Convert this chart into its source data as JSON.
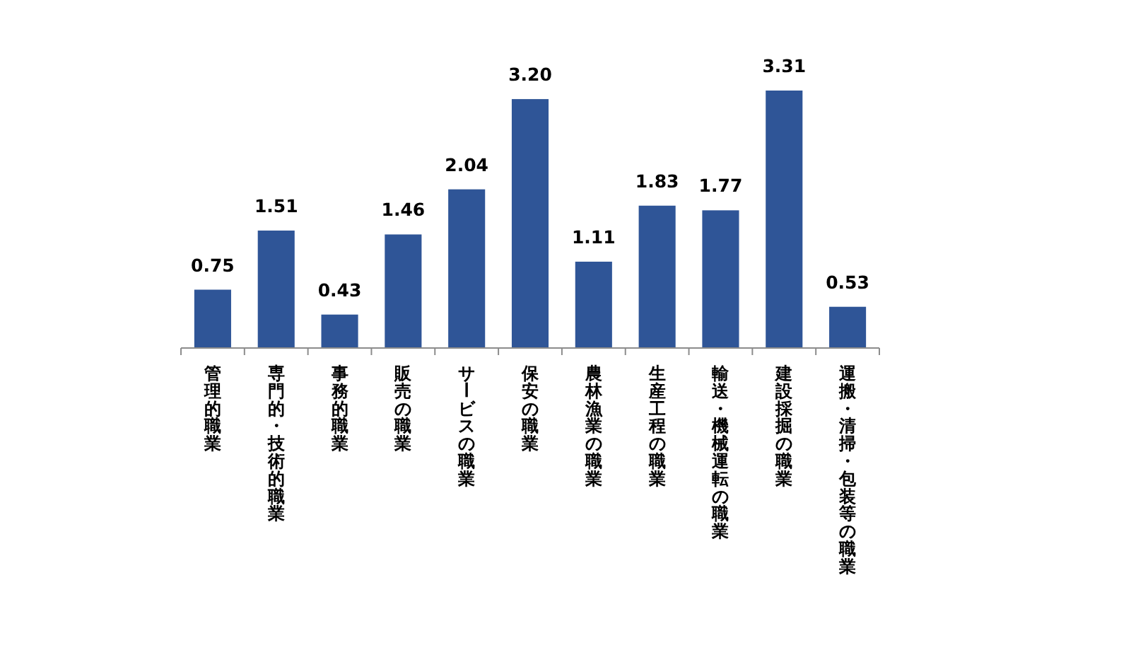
{
  "chart_data": {
    "type": "bar",
    "categories": [
      "管理的職業",
      "専門的・技術的職業",
      "事務的職業",
      "販売の職業",
      "サービスの職業",
      "保安の職業",
      "農林漁業の職業",
      "生産工程の職業",
      "輸送・機械運転の職業",
      "建設採掘の職業",
      "運搬・清掃・包装等の職業"
    ],
    "values": [
      0.75,
      1.51,
      0.43,
      1.46,
      2.04,
      3.2,
      1.11,
      1.83,
      1.77,
      3.31,
      0.53
    ],
    "value_labels": [
      "0.75",
      "1.51",
      "0.43",
      "1.46",
      "2.04",
      "3.20",
      "1.11",
      "1.83",
      "1.77",
      "3.31",
      "0.53"
    ],
    "color": "#2f5597",
    "tick_labels": "x"
  }
}
